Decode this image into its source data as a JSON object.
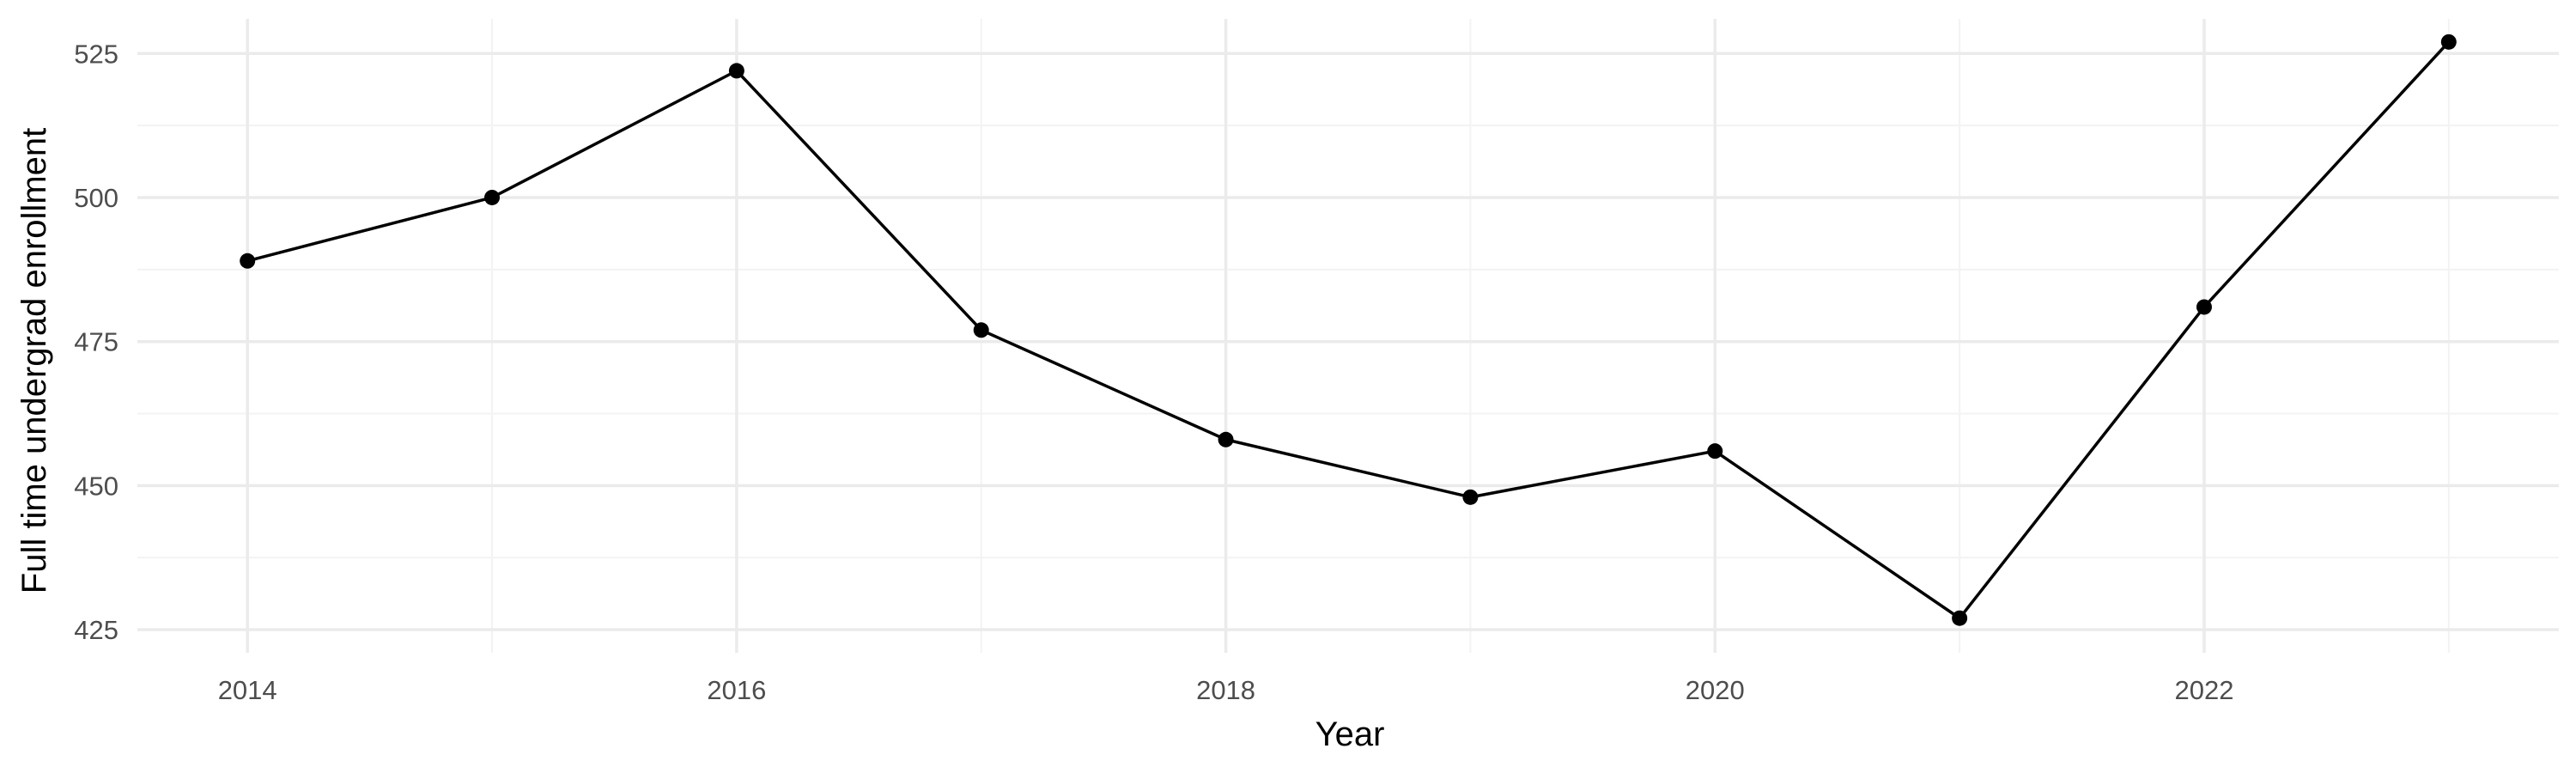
{
  "chart_data": {
    "type": "line",
    "title": "",
    "xlabel": "Year",
    "ylabel": "Full time undergrad enrollment",
    "x": [
      2014,
      2015,
      2016,
      2017,
      2018,
      2019,
      2020,
      2021,
      2022,
      2023
    ],
    "series": [
      {
        "values": [
          489,
          500,
          522,
          477,
          458,
          448,
          456,
          427,
          481,
          527
        ]
      }
    ],
    "xlim": [
      2013.55,
      2023.45
    ],
    "ylim": [
      421,
      531
    ],
    "x_ticks": [
      2014,
      2016,
      2018,
      2020,
      2022
    ],
    "x_tick_labels": [
      "2014",
      "2016",
      "2018",
      "2020",
      "2022"
    ],
    "x_minor_ticks": [
      2015,
      2017,
      2019,
      2021,
      2023
    ],
    "y_ticks": [
      425,
      450,
      475,
      500,
      525
    ],
    "y_tick_labels": [
      "425",
      "450",
      "475",
      "500",
      "525"
    ],
    "y_minor_ticks": [
      437.5,
      462.5,
      487.5,
      512.5
    ],
    "grid": true,
    "legend": "none",
    "colors": {
      "line": "#000000",
      "points": "#000000",
      "grid_major": "#ebebeb",
      "grid_minor": "#f3f3f3",
      "background": "#ffffff"
    }
  }
}
